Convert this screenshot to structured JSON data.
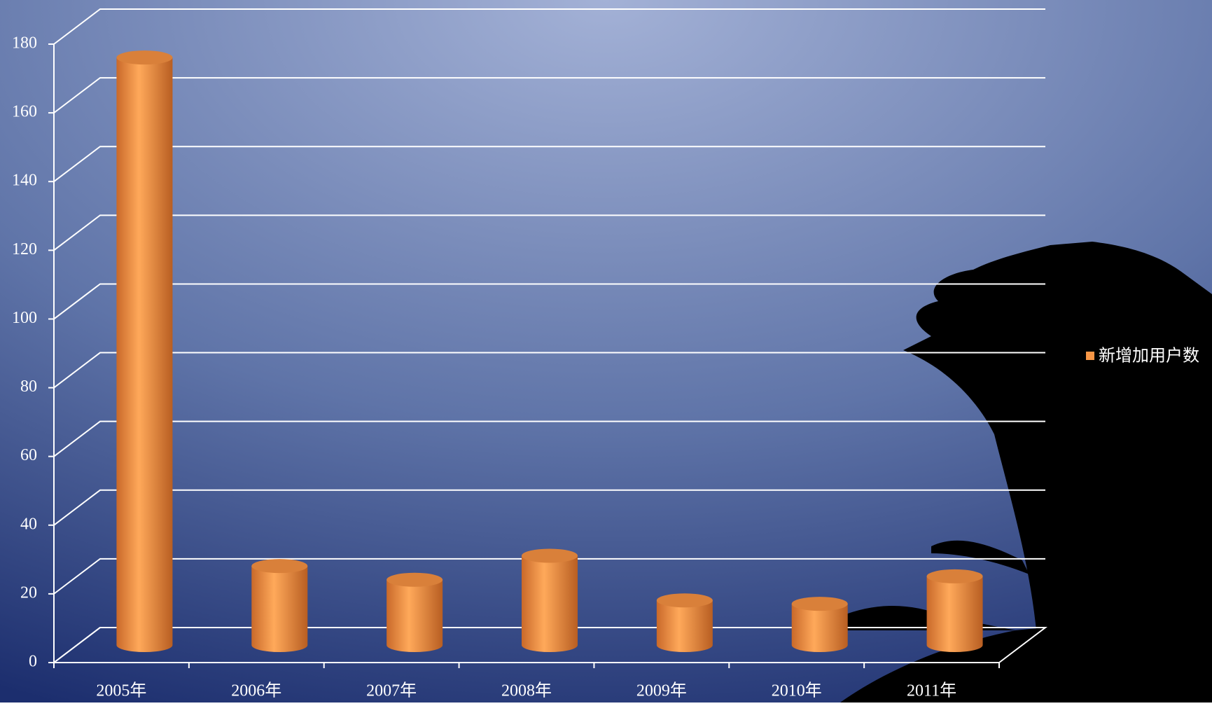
{
  "chart_data": {
    "type": "bar3d",
    "categories": [
      "2005年",
      "2006年",
      "2007年",
      "2008年",
      "2009年",
      "2010年",
      "2011年"
    ],
    "series": [
      {
        "name": "新增加用户数",
        "color": "#f79646",
        "values": [
          171,
          23,
          19,
          26,
          13,
          12,
          20
        ]
      }
    ],
    "ylim": [
      0,
      180
    ],
    "yticks": [
      0,
      20,
      40,
      60,
      80,
      100,
      120,
      140,
      160,
      180
    ],
    "grid": true,
    "legend": "right"
  }
}
